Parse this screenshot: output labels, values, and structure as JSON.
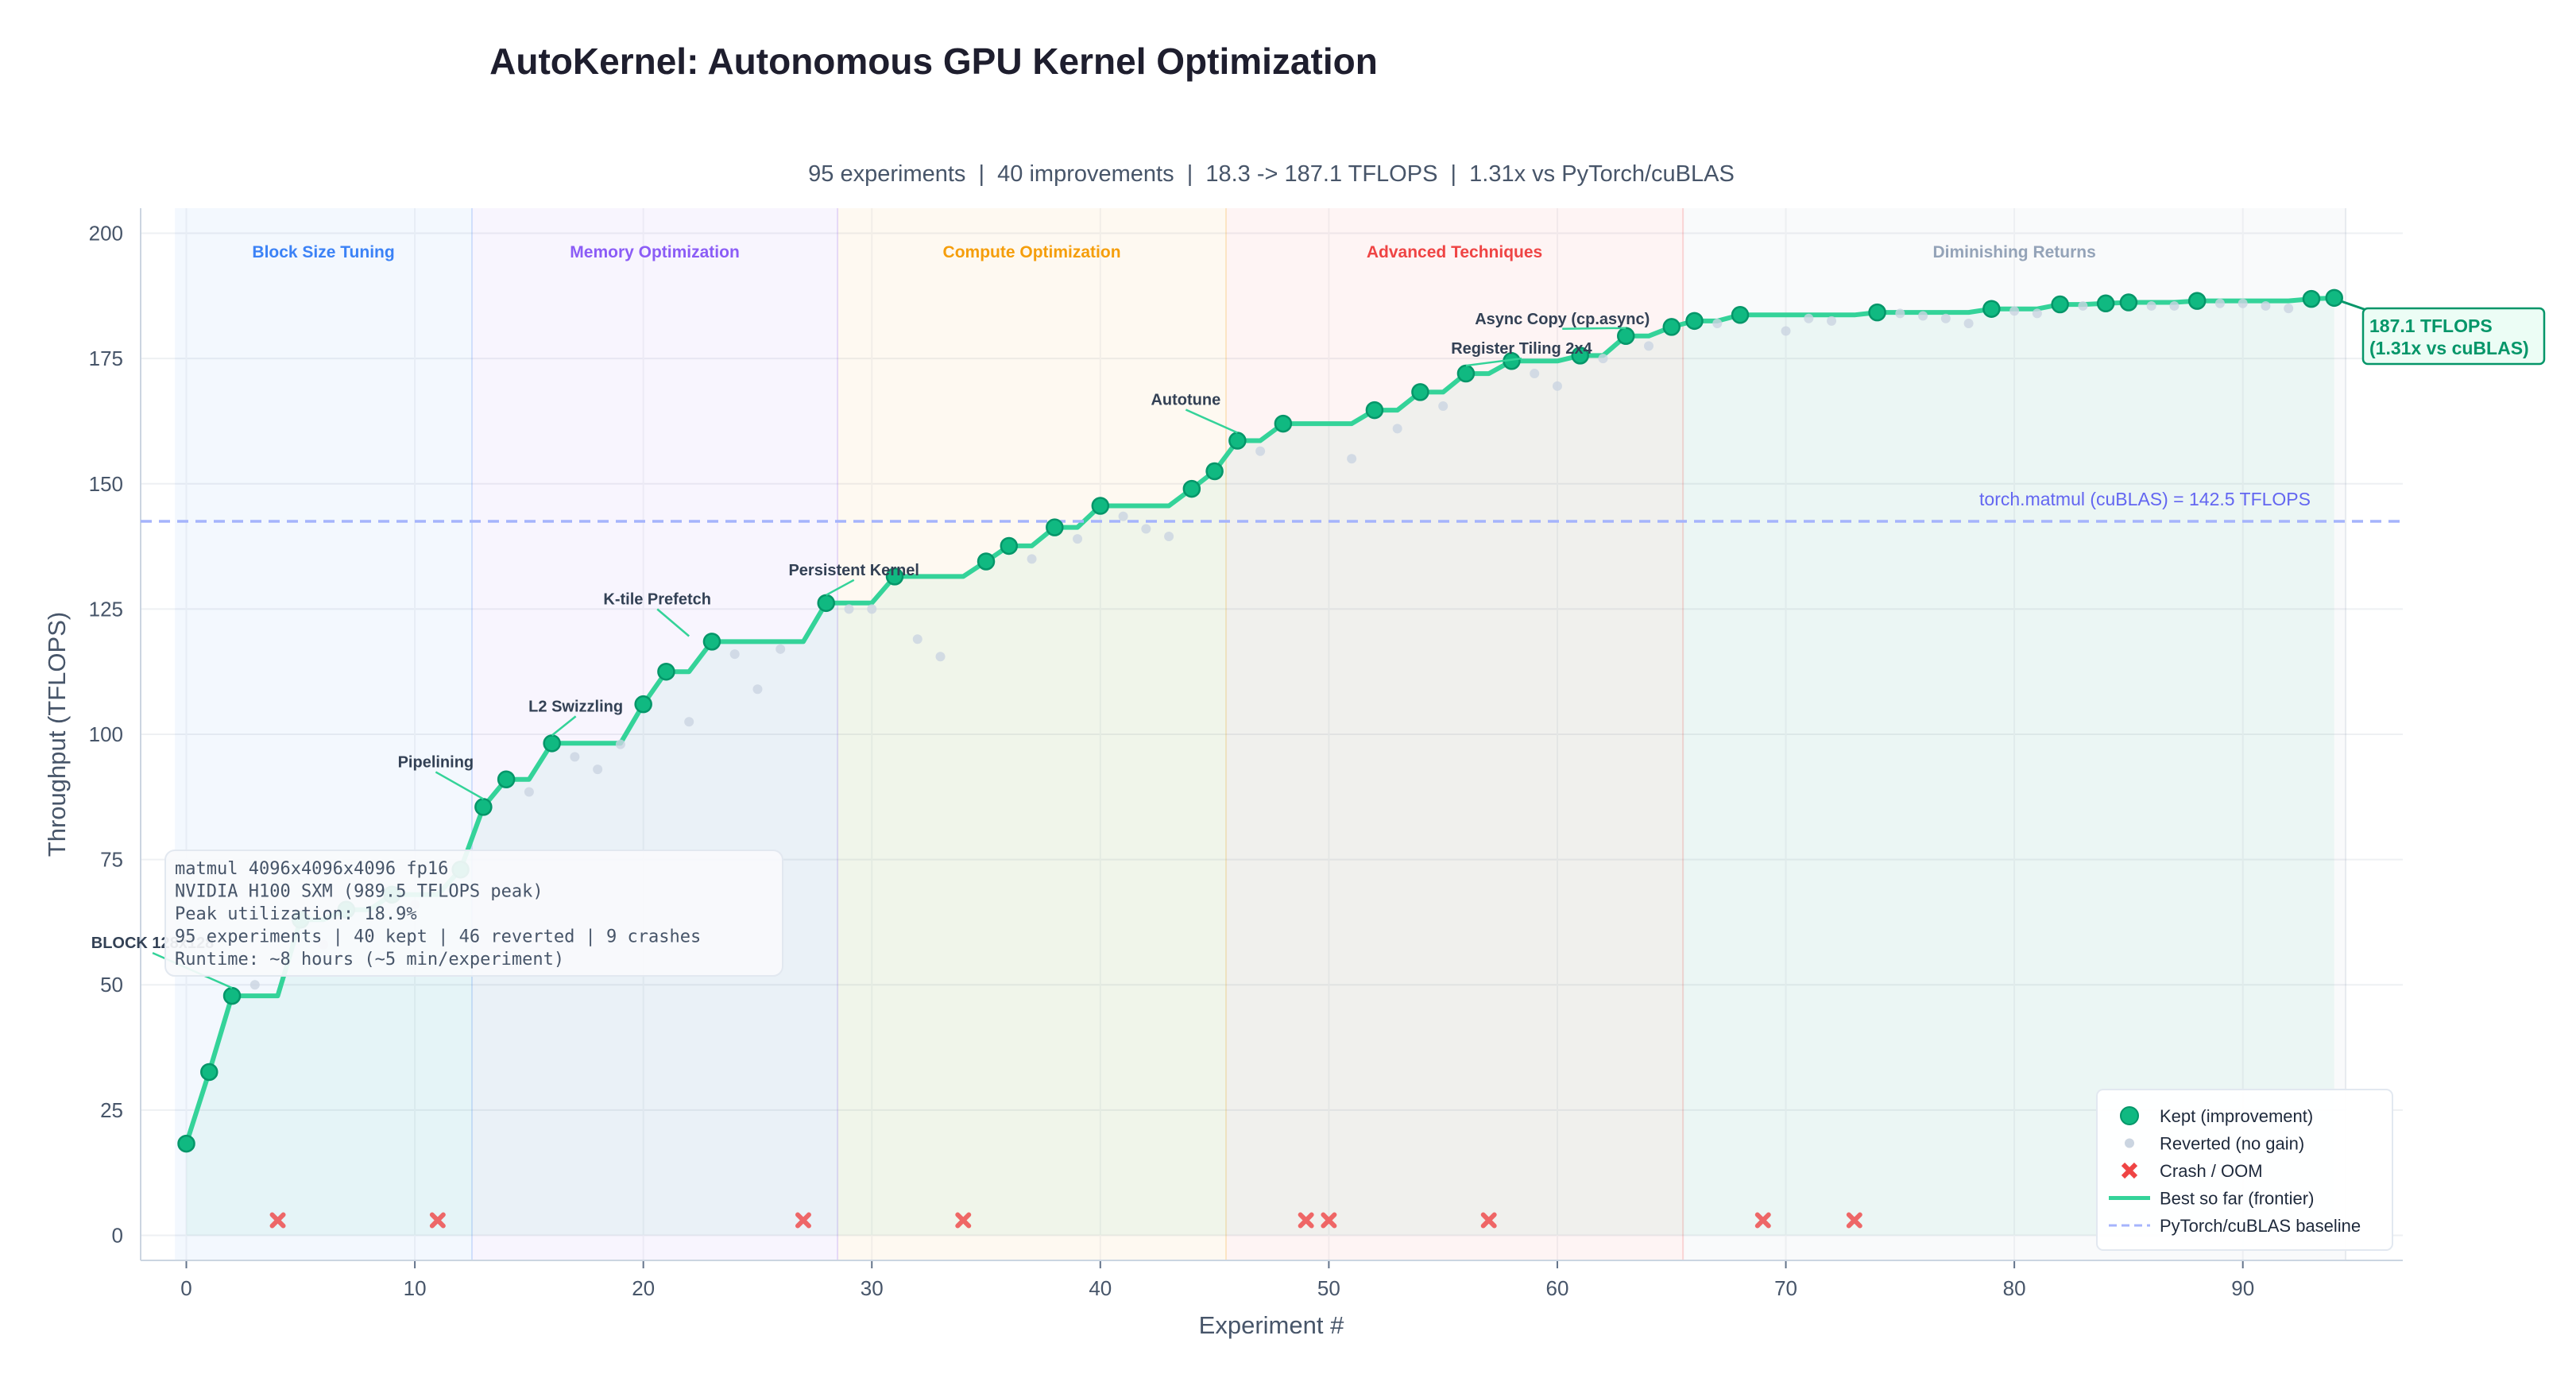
{
  "chart_data": {
    "type": "scatter",
    "title": "AutoKernel: Autonomous GPU Kernel Optimization",
    "subtitle": "95 experiments  |  40 improvements  |  18.3 -> 187.1 TFLOPS  |  1.31x vs PyTorch/cuBLAS",
    "xlabel": "Experiment #",
    "ylabel": "Throughput (TFLOPS)",
    "xlim": [
      -2,
      97
    ],
    "ylim": [
      -5,
      205
    ],
    "xticks": [
      0,
      10,
      20,
      30,
      40,
      50,
      60,
      70,
      80,
      90
    ],
    "yticks": [
      0,
      25,
      50,
      75,
      100,
      125,
      150,
      175,
      200
    ],
    "grid": true,
    "phases": [
      {
        "label": "Block Size Tuning",
        "start": -0.5,
        "end": 12.5,
        "color": "#3b82f6"
      },
      {
        "label": "Memory Optimization",
        "start": 12.5,
        "end": 28.5,
        "color": "#8b5cf6"
      },
      {
        "label": "Compute Optimization",
        "start": 28.5,
        "end": 45.5,
        "color": "#f59e0b"
      },
      {
        "label": "Advanced Techniques",
        "start": 45.5,
        "end": 65.5,
        "color": "#ef4444"
      },
      {
        "label": "Diminishing Returns",
        "start": 65.5,
        "end": 94.5,
        "color": "#94a3b8"
      }
    ],
    "series": [
      {
        "name": "Kept (improvement)",
        "color": "#10b981",
        "x": [
          0,
          1,
          2,
          5,
          7,
          9,
          12,
          13,
          14,
          16,
          20,
          21,
          23,
          28,
          31,
          35,
          36,
          38,
          40,
          44,
          45,
          46,
          48,
          52,
          54,
          56,
          58,
          61,
          63,
          65,
          66,
          68,
          74,
          79,
          82,
          84,
          85,
          88,
          93,
          94
        ],
        "y": [
          18.3,
          32.6,
          47.8,
          63,
          65,
          68,
          73,
          85.5,
          91,
          98.2,
          106,
          112.5,
          118.5,
          126.2,
          131.5,
          134.5,
          137.6,
          141.3,
          145.6,
          149,
          152.5,
          158.6,
          162,
          164.7,
          168.3,
          172,
          174.5,
          175.6,
          179.5,
          181.3,
          182.5,
          183.7,
          184.2,
          184.9,
          185.8,
          186,
          186.2,
          186.5,
          186.9,
          187.1
        ]
      },
      {
        "name": "Reverted (no gain)",
        "color": "#cbd5e1",
        "x": [
          3,
          6,
          8,
          10,
          15,
          17,
          18,
          19,
          22,
          24,
          25,
          26,
          29,
          30,
          32,
          33,
          37,
          39,
          41,
          42,
          43,
          47,
          51,
          53,
          55,
          59,
          60,
          62,
          64,
          67,
          70,
          71,
          72,
          75,
          76,
          77,
          78,
          80,
          81,
          83,
          86,
          87,
          89,
          90,
          91,
          92
        ],
        "y": [
          50,
          58,
          60,
          66,
          88.5,
          95.5,
          93,
          98,
          102.5,
          116,
          109,
          117,
          125,
          125,
          119,
          115.5,
          135,
          139,
          143.5,
          141,
          139.5,
          156.5,
          155,
          161,
          165.5,
          172,
          169.5,
          175,
          177.5,
          182,
          180.5,
          183,
          182.5,
          184,
          183.5,
          183,
          182,
          184.5,
          184,
          185.5,
          185.5,
          185.5,
          186,
          186,
          185.5,
          185
        ]
      },
      {
        "name": "Crash / OOM",
        "color": "#ef4444",
        "x": [
          4,
          11,
          27,
          34,
          49,
          50,
          57,
          69,
          73
        ],
        "y": [
          3,
          3,
          3,
          3,
          3,
          3,
          3,
          3,
          3
        ]
      },
      {
        "name": "Best so far (frontier)",
        "color": "#34d399"
      },
      {
        "name": "PyTorch/cuBLAS baseline",
        "color": "#a5b4fc",
        "value": 142.5
      }
    ],
    "baseline_label": "torch.matmul (cuBLAS) = 142.5 TFLOPS",
    "annotations": [
      {
        "text": "BLOCK 128x128",
        "x": 2,
        "y": 47.8
      },
      {
        "text": "Pipelining",
        "x": 13,
        "y": 85.5
      },
      {
        "text": "L2 Swizzling",
        "x": 16,
        "y": 98.2
      },
      {
        "text": "K-tile Prefetch",
        "x": 22,
        "y": 118
      },
      {
        "text": "Persistent Kernel",
        "x": 28,
        "y": 126.2
      },
      {
        "text": "Autotune",
        "x": 46,
        "y": 158.6
      },
      {
        "text": "Register Tiling 2x4",
        "x": 56,
        "y": 172
      },
      {
        "text": "Async Copy (cp.async)",
        "x": 63,
        "y": 179.5
      }
    ],
    "final_label": [
      "187.1 TFLOPS",
      "(1.31x vs cuBLAS)"
    ],
    "info_box": [
      "matmul  4096x4096x4096  fp16",
      "NVIDIA H100 SXM  (989.5 TFLOPS peak)",
      "Peak utilization: 18.9%",
      "95 experiments  |  40 kept  |  46 reverted  |  9 crashes",
      "Runtime: ~8 hours  (~5 min/experiment)"
    ],
    "legend_position": "lower-right"
  }
}
